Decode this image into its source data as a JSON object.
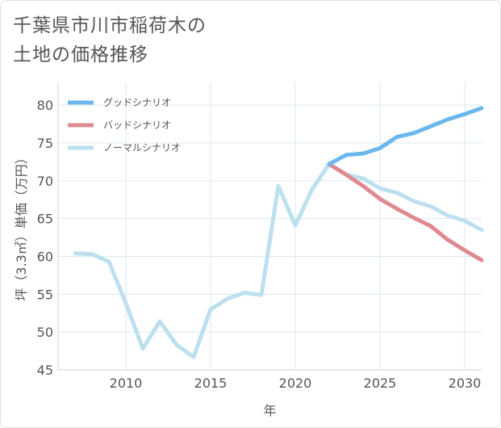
{
  "title_line1": "千葉県市川市稲荷木の",
  "title_line2": "土地の価格推移",
  "chart_data": {
    "type": "line",
    "title": "千葉県市川市稲荷木の土地の価格推移",
    "xlabel": "年",
    "ylabel": "坪（3.3㎡）単価（万円）",
    "xlim": [
      2006,
      2031
    ],
    "ylim": [
      45,
      83
    ],
    "xticks": [
      2010,
      2015,
      2020,
      2025,
      2030
    ],
    "yticks": [
      45,
      50,
      55,
      60,
      65,
      70,
      75,
      80
    ],
    "legend_position": "top-left",
    "series": [
      {
        "name": "グッドシナリオ",
        "color": "#6cb8ee",
        "x": [
          2022,
          2023,
          2024,
          2025,
          2026,
          2027,
          2028,
          2029,
          2030,
          2031
        ],
        "y": [
          72.2,
          73.4,
          73.6,
          74.3,
          75.8,
          76.3,
          77.2,
          78.1,
          78.8,
          79.6
        ]
      },
      {
        "name": "バッドシナリオ",
        "color": "#dd8a93",
        "x": [
          2022,
          2023,
          2024,
          2025,
          2026,
          2027,
          2028,
          2029,
          2030,
          2031
        ],
        "y": [
          72.2,
          70.8,
          69.3,
          67.6,
          66.3,
          65.1,
          64.0,
          62.2,
          60.8,
          59.5
        ]
      },
      {
        "name": "ノーマルシナリオ",
        "color": "#bde0ef",
        "x": [
          2007,
          2008,
          2009,
          2010,
          2011,
          2012,
          2013,
          2014,
          2015,
          2016,
          2017,
          2018,
          2019,
          2020,
          2021,
          2022,
          2023,
          2024,
          2025,
          2026,
          2027,
          2028,
          2029,
          2030,
          2031
        ],
        "y": [
          60.4,
          60.3,
          59.3,
          53.8,
          47.8,
          51.4,
          48.3,
          46.7,
          53.0,
          54.4,
          55.2,
          54.9,
          69.3,
          64.1,
          68.9,
          72.2,
          70.8,
          70.3,
          69.0,
          68.4,
          67.3,
          66.6,
          65.4,
          64.7,
          63.5
        ]
      }
    ]
  }
}
